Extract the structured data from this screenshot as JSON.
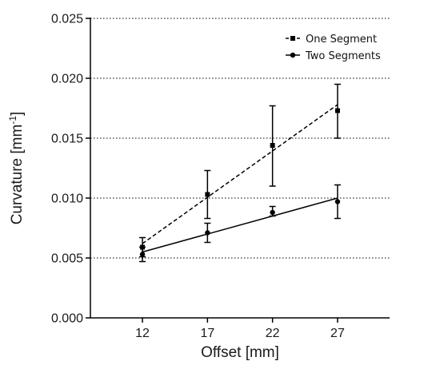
{
  "chart_data": {
    "type": "scatter",
    "xlabel": "Offset [mm]",
    "ylabel_main": "Curvature [mm",
    "ylabel_sup": "-1",
    "ylabel_close": "]",
    "x_ticks": [
      12,
      17,
      22,
      27
    ],
    "y_ticks": [
      "0.000",
      "0.005",
      "0.010",
      "0.015",
      "0.020",
      "0.025"
    ],
    "y_tick_values": [
      0.0,
      0.005,
      0.01,
      0.015,
      0.02,
      0.025
    ],
    "xlim": [
      8,
      31
    ],
    "ylim": [
      0,
      0.025
    ],
    "grid": "horizontal-dotted",
    "legend_position": "top-right",
    "series": [
      {
        "name": "One Segment",
        "marker": "square",
        "line_style": "dashed",
        "x": [
          12,
          17,
          22,
          27
        ],
        "y": [
          0.0059,
          0.0103,
          0.0144,
          0.0173
        ],
        "err_low": [
          0.0051,
          0.0083,
          0.011,
          0.015
        ],
        "err_high": [
          0.0067,
          0.0123,
          0.0177,
          0.0195
        ],
        "fit": [
          [
            12,
            0.0062
          ],
          [
            27,
            0.0178
          ]
        ]
      },
      {
        "name": "Two Segments",
        "marker": "circle",
        "line_style": "solid",
        "x": [
          12,
          17,
          22,
          27
        ],
        "y": [
          0.0053,
          0.0071,
          0.0088,
          0.0097
        ],
        "err_low": [
          0.0047,
          0.0063,
          0.0085,
          0.0083
        ],
        "err_high": [
          0.0059,
          0.0079,
          0.0093,
          0.0111
        ],
        "fit": [
          [
            12,
            0.0055
          ],
          [
            27,
            0.01
          ]
        ]
      }
    ]
  }
}
